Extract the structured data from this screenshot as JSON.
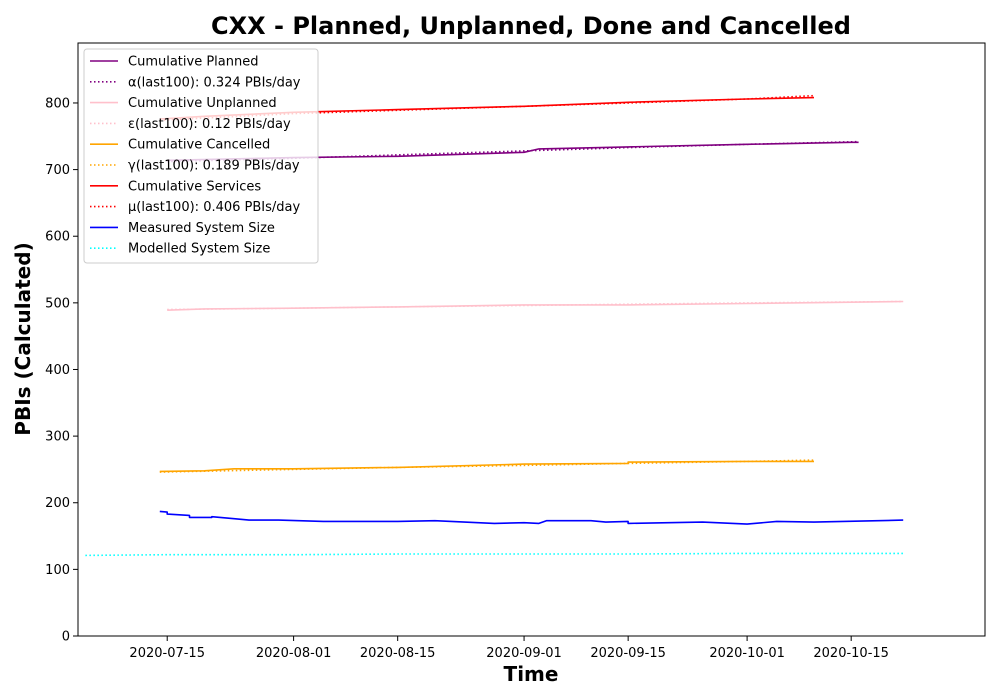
{
  "chart_data": {
    "type": "line",
    "title": "CXX - Planned, Unplanned, Done  and Cancelled",
    "xlabel": "Time",
    "ylabel": "PBIs (Calculated)",
    "x_range": [
      "2020-07-03",
      "2020-11-02"
    ],
    "ylim": [
      0,
      890
    ],
    "y_ticks": [
      0,
      100,
      200,
      300,
      400,
      500,
      600,
      700,
      800
    ],
    "x_ticks": [
      "2020-07-15",
      "2020-08-01",
      "2020-08-15",
      "2020-09-01",
      "2020-09-15",
      "2020-10-01",
      "2020-10-15"
    ],
    "legend_position": "top-left",
    "series": [
      {
        "name": "Cumulative Planned",
        "color": "#800080",
        "style": "solid",
        "points": [
          [
            "2020-07-15",
            714
          ],
          [
            "2020-08-01",
            718
          ],
          [
            "2020-08-15",
            720
          ],
          [
            "2020-09-01",
            726
          ],
          [
            "2020-09-03",
            731
          ],
          [
            "2020-09-15",
            734
          ],
          [
            "2020-10-01",
            738
          ],
          [
            "2020-10-15",
            741
          ],
          [
            "2020-10-16",
            741
          ]
        ]
      },
      {
        "name": "α(last100): 0.324 PBIs/day",
        "color": "#800080",
        "style": "dotted",
        "points": [
          [
            "2020-07-15",
            712
          ],
          [
            "2020-08-01",
            717
          ],
          [
            "2020-08-15",
            722
          ],
          [
            "2020-09-01",
            728
          ],
          [
            "2020-09-15",
            733
          ],
          [
            "2020-10-01",
            738
          ],
          [
            "2020-10-16",
            742
          ]
        ]
      },
      {
        "name": "Cumulative Unplanned",
        "color": "#ffc0cb",
        "style": "solid",
        "points": [
          [
            "2020-07-15",
            489
          ],
          [
            "2020-07-20",
            491
          ],
          [
            "2020-08-01",
            492
          ],
          [
            "2020-08-15",
            494
          ],
          [
            "2020-09-01",
            497
          ],
          [
            "2020-09-15",
            497
          ],
          [
            "2020-10-01",
            499
          ],
          [
            "2020-10-15",
            501
          ],
          [
            "2020-10-22",
            502
          ]
        ]
      },
      {
        "name": "ε(last100): 0.12 PBIs/day",
        "color": "#ffc0cb",
        "style": "dotted",
        "points": [
          [
            "2020-07-15",
            490
          ],
          [
            "2020-08-01",
            492
          ],
          [
            "2020-08-15",
            494
          ],
          [
            "2020-09-01",
            496
          ],
          [
            "2020-09-15",
            498
          ],
          [
            "2020-10-01",
            500
          ],
          [
            "2020-10-22",
            502
          ]
        ]
      },
      {
        "name": "Cumulative Cancelled",
        "color": "#ffa500",
        "style": "solid",
        "points": [
          [
            "2020-07-14",
            247
          ],
          [
            "2020-07-20",
            248
          ],
          [
            "2020-07-24",
            251
          ],
          [
            "2020-08-01",
            251
          ],
          [
            "2020-08-15",
            253
          ],
          [
            "2020-09-01",
            258
          ],
          [
            "2020-09-15",
            259
          ],
          [
            "2020-09-15",
            261
          ],
          [
            "2020-10-01",
            262
          ],
          [
            "2020-10-10",
            262
          ]
        ]
      },
      {
        "name": "γ(last100): 0.189 PBIs/day",
        "color": "#ffa500",
        "style": "dotted",
        "points": [
          [
            "2020-07-14",
            246
          ],
          [
            "2020-08-01",
            250
          ],
          [
            "2020-08-15",
            253
          ],
          [
            "2020-09-01",
            256
          ],
          [
            "2020-09-15",
            259
          ],
          [
            "2020-10-01",
            262
          ],
          [
            "2020-10-10",
            264
          ]
        ]
      },
      {
        "name": "Cumulative Services",
        "color": "#ff0000",
        "style": "solid",
        "points": [
          [
            "2020-07-14",
            776
          ],
          [
            "2020-07-20",
            780
          ],
          [
            "2020-08-01",
            786
          ],
          [
            "2020-08-15",
            790
          ],
          [
            "2020-09-01",
            795
          ],
          [
            "2020-09-15",
            801
          ],
          [
            "2020-10-01",
            806
          ],
          [
            "2020-10-10",
            808
          ]
        ]
      },
      {
        "name": "μ(last100): 0.406 PBIs/day",
        "color": "#ff0000",
        "style": "dotted",
        "points": [
          [
            "2020-07-14",
            774
          ],
          [
            "2020-08-01",
            784
          ],
          [
            "2020-08-15",
            789
          ],
          [
            "2020-09-01",
            795
          ],
          [
            "2020-09-15",
            800
          ],
          [
            "2020-10-01",
            806
          ],
          [
            "2020-10-10",
            811
          ]
        ]
      },
      {
        "name": "Measured System Size",
        "color": "#0000ff",
        "style": "solid",
        "points": [
          [
            "2020-07-14",
            187
          ],
          [
            "2020-07-15",
            186
          ],
          [
            "2020-07-15",
            183
          ],
          [
            "2020-07-18",
            181
          ],
          [
            "2020-07-18",
            178
          ],
          [
            "2020-07-21",
            178
          ],
          [
            "2020-07-21",
            179
          ],
          [
            "2020-07-24",
            176
          ],
          [
            "2020-07-26",
            174
          ],
          [
            "2020-07-30",
            174
          ],
          [
            "2020-08-05",
            172
          ],
          [
            "2020-08-10",
            172
          ],
          [
            "2020-08-15",
            172
          ],
          [
            "2020-08-20",
            173
          ],
          [
            "2020-08-28",
            169
          ],
          [
            "2020-09-01",
            170
          ],
          [
            "2020-09-03",
            169
          ],
          [
            "2020-09-04",
            173
          ],
          [
            "2020-09-10",
            173
          ],
          [
            "2020-09-12",
            171
          ],
          [
            "2020-09-15",
            172
          ],
          [
            "2020-09-15",
            169
          ],
          [
            "2020-09-25",
            171
          ],
          [
            "2020-10-01",
            168
          ],
          [
            "2020-10-05",
            172
          ],
          [
            "2020-10-10",
            171
          ],
          [
            "2020-10-22",
            174
          ]
        ]
      },
      {
        "name": "Modelled System Size",
        "color": "#00ffff",
        "style": "dotted",
        "points": [
          [
            "2020-07-04",
            121
          ],
          [
            "2020-07-15",
            122
          ],
          [
            "2020-08-01",
            122
          ],
          [
            "2020-08-15",
            123
          ],
          [
            "2020-09-01",
            123
          ],
          [
            "2020-09-15",
            123
          ],
          [
            "2020-10-01",
            124
          ],
          [
            "2020-10-15",
            124
          ],
          [
            "2020-10-22",
            124
          ]
        ]
      }
    ]
  }
}
